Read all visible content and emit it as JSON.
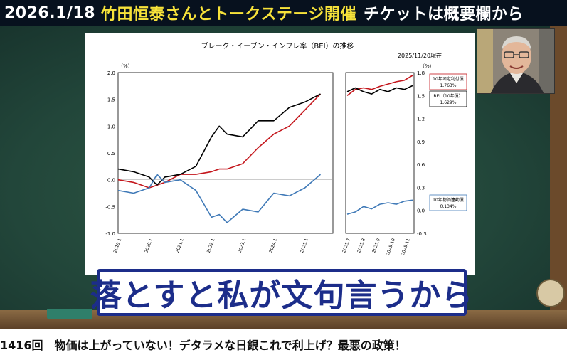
{
  "banner": {
    "date": "2026.1/18",
    "event": "竹田恒泰さんとトークステージ開催",
    "ticket": "チケットは概要欄から"
  },
  "subtitle": "落とすと私が文句言うから",
  "video_title": "1416回　物価は上がっていない！デタラメな日銀これで利上げ？最悪の政策！",
  "chart_data": {
    "type": "line",
    "title": "ブレーク・イーブン・インフレ率（BEI）の推移",
    "date_label": "2025/11/20現在",
    "left_panel": {
      "ylabel": "（%）",
      "ylim": [
        -1.0,
        2.0
      ],
      "y_ticks": [
        "2.0",
        "1.5",
        "1.0",
        "0.5",
        "0.0",
        "-0.5",
        "-1.0"
      ],
      "x_ticks": [
        "2019.1",
        "2020.1",
        "2021.1",
        "2022.1",
        "2023.1",
        "2024.1",
        "2025.1"
      ],
      "x": [
        2019.0,
        2019.5,
        2020.0,
        2020.25,
        2020.5,
        2021.0,
        2021.5,
        2022.0,
        2022.25,
        2022.5,
        2023.0,
        2023.5,
        2024.0,
        2024.5,
        2025.0,
        2025.5
      ],
      "series": [
        {
          "name": "10年固定利付債",
          "color": "#c4161c",
          "values": [
            0.0,
            -0.05,
            -0.15,
            -0.1,
            -0.05,
            0.1,
            0.1,
            0.15,
            0.2,
            0.2,
            0.3,
            0.6,
            0.85,
            1.0,
            1.3,
            1.6
          ]
        },
        {
          "name": "BEI（10年債）",
          "color": "#000000",
          "values": [
            0.2,
            0.15,
            0.05,
            -0.1,
            0.05,
            0.1,
            0.25,
            0.8,
            1.0,
            0.85,
            0.8,
            1.1,
            1.1,
            1.35,
            1.45,
            1.6
          ]
        },
        {
          "name": "10年物価連動債",
          "color": "#3f79b7",
          "values": [
            -0.2,
            -0.25,
            -0.15,
            0.1,
            -0.05,
            0.0,
            -0.2,
            -0.7,
            -0.65,
            -0.8,
            -0.55,
            -0.6,
            -0.25,
            -0.3,
            -0.15,
            0.1
          ]
        }
      ]
    },
    "right_panel": {
      "y_ticks": [
        "1.8",
        "1.5",
        "1.2",
        "0.9",
        "0.6",
        "0.3",
        "0.0",
        "-0.3"
      ],
      "ylim": [
        -0.3,
        1.8
      ],
      "x_ticks": [
        "2025.7",
        "2025.8",
        "2025.9",
        "2025.10",
        "2025.11"
      ],
      "x": [
        0,
        1,
        2,
        3,
        4,
        5,
        6,
        7,
        8
      ],
      "series": [
        {
          "name": "10年固定利付債",
          "color": "#c4161c",
          "values": [
            1.5,
            1.58,
            1.6,
            1.58,
            1.62,
            1.65,
            1.68,
            1.7,
            1.763
          ]
        },
        {
          "name": "BEI（10年債）",
          "color": "#000000",
          "values": [
            1.55,
            1.6,
            1.55,
            1.52,
            1.58,
            1.55,
            1.6,
            1.58,
            1.629
          ]
        },
        {
          "name": "10年物価連動債",
          "color": "#3f79b7",
          "values": [
            -0.05,
            -0.02,
            0.05,
            0.02,
            0.08,
            0.1,
            0.08,
            0.12,
            0.134
          ]
        }
      ]
    },
    "legend": [
      {
        "name": "10年固定利付債",
        "value": "1.763%",
        "color": "#c4161c"
      },
      {
        "name": "BEI（10年債）",
        "value": "1.629%",
        "color": "#000000"
      },
      {
        "name": "10年物価連動債",
        "value": "0.134%",
        "color": "#3f79b7"
      }
    ]
  }
}
